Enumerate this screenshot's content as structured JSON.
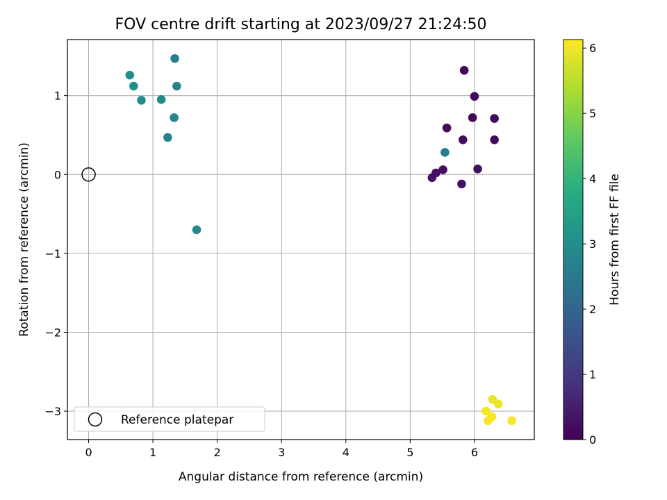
{
  "chart_data": {
    "type": "scatter",
    "title": "FOV centre drift starting at 2023/09/27 21:24:50",
    "xlabel": "Angular distance from reference (arcmin)",
    "ylabel": "Rotation from reference (arcmin)",
    "xlim": [
      -0.33,
      6.93
    ],
    "ylim": [
      -3.36,
      1.71
    ],
    "xticks": [
      0,
      1,
      2,
      3,
      4,
      5,
      6
    ],
    "yticks": [
      -3,
      -2,
      -1,
      0,
      1
    ],
    "ytick_labels": [
      "−3",
      "−2",
      "−1",
      "0",
      "1"
    ],
    "grid": true,
    "colormap": "viridis",
    "colorbar": {
      "label": "Hours from first FF file",
      "range": [
        0,
        6.13
      ],
      "ticks": [
        0,
        1,
        2,
        3,
        4,
        5,
        6
      ]
    },
    "legend": {
      "label": "Reference platepar",
      "location": "lower-left"
    },
    "reference_point": {
      "x": 0,
      "y": 0
    },
    "points": [
      {
        "x": 5.84,
        "y": 1.32,
        "hours": 0.08
      },
      {
        "x": 6.0,
        "y": 0.99,
        "hours": 0.1
      },
      {
        "x": 5.97,
        "y": 0.72,
        "hours": 0.12
      },
      {
        "x": 6.31,
        "y": 0.71,
        "hours": 0.14
      },
      {
        "x": 5.57,
        "y": 0.59,
        "hours": 0.16
      },
      {
        "x": 5.82,
        "y": 0.44,
        "hours": 0.18
      },
      {
        "x": 6.31,
        "y": 0.44,
        "hours": 0.2
      },
      {
        "x": 6.05,
        "y": 0.07,
        "hours": 0.22
      },
      {
        "x": 5.51,
        "y": 0.06,
        "hours": 0.24
      },
      {
        "x": 5.4,
        "y": 0.02,
        "hours": 0.26
      },
      {
        "x": 5.34,
        "y": -0.04,
        "hours": 0.28
      },
      {
        "x": 5.8,
        "y": -0.12,
        "hours": 0.3
      },
      {
        "x": 5.54,
        "y": 0.28,
        "hours": 2.55
      },
      {
        "x": 1.34,
        "y": 1.47,
        "hours": 2.65
      },
      {
        "x": 1.37,
        "y": 1.12,
        "hours": 2.7
      },
      {
        "x": 1.23,
        "y": 0.47,
        "hours": 2.75
      },
      {
        "x": 1.33,
        "y": 0.72,
        "hours": 2.8
      },
      {
        "x": 1.68,
        "y": -0.7,
        "hours": 2.85
      },
      {
        "x": 1.13,
        "y": 0.95,
        "hours": 2.9
      },
      {
        "x": 0.82,
        "y": 0.94,
        "hours": 2.95
      },
      {
        "x": 0.7,
        "y": 1.12,
        "hours": 3.0
      },
      {
        "x": 0.64,
        "y": 1.26,
        "hours": 3.05
      },
      {
        "x": 6.28,
        "y": -2.85,
        "hours": 5.95
      },
      {
        "x": 6.37,
        "y": -2.91,
        "hours": 6.0
      },
      {
        "x": 6.18,
        "y": -3.0,
        "hours": 6.05
      },
      {
        "x": 6.27,
        "y": -3.07,
        "hours": 6.08
      },
      {
        "x": 6.21,
        "y": -3.12,
        "hours": 6.1
      },
      {
        "x": 6.58,
        "y": -3.12,
        "hours": 6.13
      }
    ]
  }
}
